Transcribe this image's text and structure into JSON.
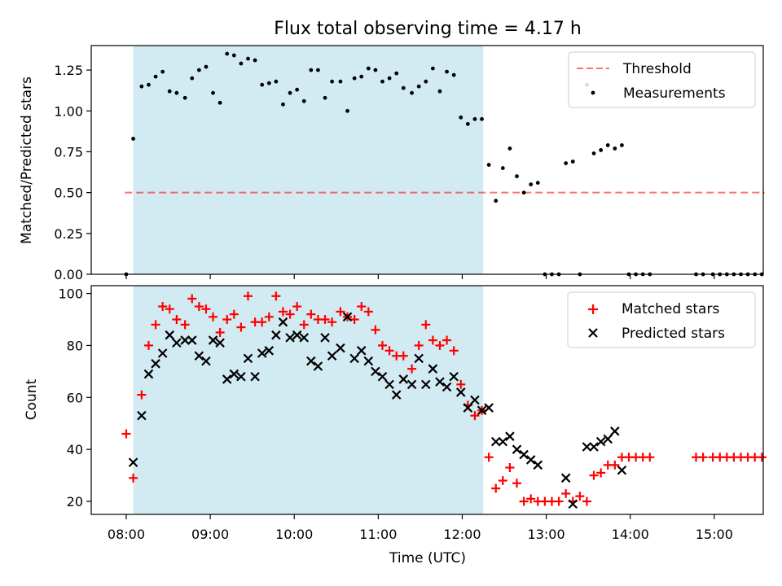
{
  "title": "Flux total observing time = 4.17 h",
  "colors": {
    "shade": "#add8e6",
    "threshold": "#ff0000",
    "measurements": "#000000",
    "matched": "#ff0000",
    "predicted": "#000000"
  },
  "chart_data": [
    {
      "type": "scatter",
      "ylabel": "Matched/Predicted stars",
      "ylim": [
        0,
        1.4
      ],
      "yticks": [
        "0.00",
        "0.25",
        "0.50",
        "0.75",
        "1.00",
        "1.25"
      ],
      "ytick_values": [
        0,
        0.25,
        0.5,
        0.75,
        1.0,
        1.25
      ],
      "grid": false,
      "legend_placement": "top-right",
      "shaded_interval": [
        "08:05",
        "12:15"
      ],
      "threshold": {
        "name": "Threshold",
        "x": [
          "07:59",
          "15:36"
        ],
        "y": 0.5,
        "style": "dashed"
      },
      "series": [
        {
          "name": "Measurements",
          "x": [
            "08:00",
            "08:05",
            "08:11",
            "08:16",
            "08:21",
            "08:26",
            "08:31",
            "08:36",
            "08:42",
            "08:47",
            "08:52",
            "08:57",
            "09:02",
            "09:07",
            "09:12",
            "09:17",
            "09:22",
            "09:27",
            "09:32",
            "09:37",
            "09:42",
            "09:47",
            "09:52",
            "09:57",
            "10:02",
            "10:07",
            "10:12",
            "10:17",
            "10:22",
            "10:27",
            "10:33",
            "10:38",
            "10:43",
            "10:48",
            "10:53",
            "10:58",
            "11:03",
            "11:08",
            "11:13",
            "11:18",
            "11:24",
            "11:29",
            "11:34",
            "11:39",
            "11:44",
            "11:49",
            "11:54",
            "11:59",
            "12:04",
            "12:09",
            "12:14",
            "12:19",
            "12:24",
            "12:29",
            "12:34",
            "12:39",
            "12:44",
            "12:49",
            "12:54",
            "12:59",
            "13:04",
            "13:09",
            "13:14",
            "13:19",
            "13:24",
            "13:29",
            "13:34",
            "13:39",
            "13:44",
            "13:49",
            "13:54",
            "13:59",
            "14:04",
            "14:09",
            "14:14",
            "14:47",
            "14:52",
            "14:59",
            "15:04",
            "15:09",
            "15:14",
            "15:19",
            "15:24",
            "15:29",
            "15:34"
          ],
          "y": [
            0,
            0.83,
            1.15,
            1.16,
            1.21,
            1.24,
            1.12,
            1.11,
            1.08,
            1.2,
            1.25,
            1.27,
            1.11,
            1.05,
            1.35,
            1.34,
            1.29,
            1.32,
            1.31,
            1.16,
            1.17,
            1.18,
            1.04,
            1.11,
            1.13,
            1.06,
            1.25,
            1.25,
            1.08,
            1.18,
            1.18,
            1.0,
            1.2,
            1.21,
            1.26,
            1.25,
            1.18,
            1.2,
            1.23,
            1.14,
            1.11,
            1.15,
            1.18,
            1.26,
            1.12,
            1.24,
            1.22,
            0.96,
            0.92,
            0.95,
            0.95,
            0.67,
            0.45,
            0.65,
            0.77,
            0.6,
            0.5,
            0.55,
            0.56,
            0,
            0,
            0,
            0.68,
            0.69,
            0,
            1.16,
            0.74,
            0.76,
            0.79,
            0.77,
            0.79,
            0,
            0,
            0,
            0,
            0,
            0,
            0,
            0,
            0,
            0,
            0,
            0,
            0,
            0
          ]
        }
      ]
    },
    {
      "type": "scatter",
      "xlabel": "Time (UTC)",
      "ylabel": "Count",
      "ylim": [
        15,
        103
      ],
      "yticks": [
        "20",
        "40",
        "60",
        "80",
        "100"
      ],
      "ytick_values": [
        20,
        40,
        60,
        80,
        100
      ],
      "xlim": [
        "07:35",
        "15:35"
      ],
      "xticks": [
        "08:00",
        "09:00",
        "10:00",
        "11:00",
        "12:00",
        "13:00",
        "14:00",
        "15:00"
      ],
      "grid": false,
      "legend_placement": "top-right",
      "shaded_interval": [
        "08:05",
        "12:15"
      ],
      "series": [
        {
          "name": "Matched stars",
          "marker": "plus",
          "x": [
            "08:00",
            "08:05",
            "08:11",
            "08:16",
            "08:21",
            "08:26",
            "08:31",
            "08:36",
            "08:42",
            "08:47",
            "08:52",
            "08:57",
            "09:02",
            "09:07",
            "09:12",
            "09:17",
            "09:22",
            "09:27",
            "09:32",
            "09:37",
            "09:42",
            "09:47",
            "09:52",
            "09:57",
            "10:02",
            "10:07",
            "10:12",
            "10:17",
            "10:22",
            "10:27",
            "10:33",
            "10:38",
            "10:43",
            "10:48",
            "10:53",
            "10:58",
            "11:03",
            "11:08",
            "11:13",
            "11:18",
            "11:24",
            "11:29",
            "11:34",
            "11:39",
            "11:44",
            "11:49",
            "11:54",
            "11:59",
            "12:04",
            "12:09",
            "12:14",
            "12:19",
            "12:24",
            "12:29",
            "12:34",
            "12:39",
            "12:44",
            "12:49",
            "12:54",
            "12:59",
            "13:04",
            "13:09",
            "13:14",
            "13:19",
            "13:24",
            "13:29",
            "13:34",
            "13:39",
            "13:44",
            "13:49",
            "13:54",
            "13:59",
            "14:04",
            "14:09",
            "14:14",
            "14:47",
            "14:52",
            "14:59",
            "15:04",
            "15:09",
            "15:14",
            "15:19",
            "15:24",
            "15:29",
            "15:34"
          ],
          "y": [
            46,
            29,
            61,
            80,
            88,
            95,
            94,
            90,
            88,
            98,
            95,
            94,
            91,
            85,
            90,
            92,
            87,
            99,
            89,
            89,
            91,
            99,
            93,
            92,
            95,
            88,
            92,
            90,
            90,
            89,
            93,
            91,
            90,
            95,
            93,
            86,
            80,
            78,
            76,
            76,
            71,
            80,
            88,
            82,
            80,
            82,
            78,
            65,
            57,
            53,
            55,
            37,
            25,
            28,
            33,
            27,
            20,
            21,
            20,
            20,
            20,
            20,
            23,
            20,
            22,
            20,
            30,
            31,
            34,
            34,
            37,
            37,
            37,
            37,
            37,
            37,
            37,
            37,
            37,
            37,
            37,
            37,
            37,
            37,
            37
          ]
        },
        {
          "name": "Predicted stars",
          "marker": "x",
          "x": [
            "08:05",
            "08:11",
            "08:16",
            "08:21",
            "08:26",
            "08:31",
            "08:36",
            "08:42",
            "08:47",
            "08:52",
            "08:57",
            "09:02",
            "09:07",
            "09:12",
            "09:17",
            "09:22",
            "09:27",
            "09:32",
            "09:37",
            "09:42",
            "09:47",
            "09:52",
            "09:57",
            "10:02",
            "10:07",
            "10:12",
            "10:17",
            "10:22",
            "10:27",
            "10:33",
            "10:38",
            "10:43",
            "10:48",
            "10:53",
            "10:58",
            "11:03",
            "11:08",
            "11:13",
            "11:18",
            "11:24",
            "11:29",
            "11:34",
            "11:39",
            "11:44",
            "11:49",
            "11:54",
            "11:59",
            "12:04",
            "12:09",
            "12:14",
            "12:19",
            "12:24",
            "12:29",
            "12:34",
            "12:39",
            "12:44",
            "12:49",
            "12:54",
            "13:14",
            "13:19",
            "13:29",
            "13:34",
            "13:39",
            "13:44",
            "13:49",
            "13:54"
          ],
          "y": [
            35,
            53,
            69,
            73,
            77,
            84,
            81,
            82,
            82,
            76,
            74,
            82,
            81,
            67,
            69,
            68,
            75,
            68,
            77,
            78,
            84,
            89,
            83,
            84,
            83,
            74,
            72,
            83,
            76,
            79,
            91,
            75,
            78,
            74,
            70,
            68,
            65,
            61,
            67,
            65,
            75,
            65,
            71,
            66,
            64,
            68,
            62,
            56,
            59,
            55,
            56,
            43,
            43,
            45,
            40,
            38,
            36,
            34,
            29,
            19,
            41,
            41,
            43,
            44,
            47,
            32
          ]
        }
      ]
    }
  ]
}
